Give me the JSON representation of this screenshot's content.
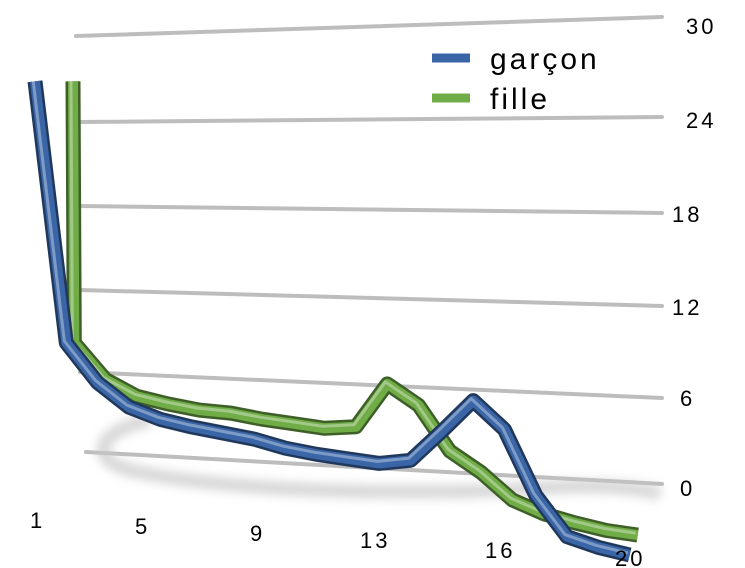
{
  "chart_data": {
    "type": "line",
    "x": [
      "1",
      "2",
      "3",
      "4",
      "5",
      "6",
      "7",
      "8",
      "9",
      "10",
      "11",
      "12",
      "13",
      "14",
      "15",
      "16",
      "17",
      "18",
      "19",
      "20"
    ],
    "x_tick_labels": [
      "1",
      "5",
      "9",
      "13",
      "16",
      "20"
    ],
    "y_tick_labels": [
      "0",
      "6",
      "12",
      "18",
      "24",
      "30"
    ],
    "ylim": [
      0,
      30
    ],
    "grid": true,
    "legend": "top-right",
    "series": [
      {
        "name": "garçon",
        "color": "#3a66a8",
        "values": [
          27.5,
          10.5,
          8,
          6.5,
          5.8,
          5.4,
          5.1,
          4.8,
          4.3,
          4,
          3.8,
          3.6,
          3.9,
          5.9,
          8,
          6.2,
          2,
          -0.6,
          -1.2,
          -1.6
        ]
      },
      {
        "name": "fille",
        "color": "#70ad47",
        "values": [
          27.5,
          10.5,
          8.2,
          7.2,
          6.8,
          6.5,
          6.4,
          6.1,
          5.9,
          5.7,
          5.9,
          8.8,
          7.5,
          4.6,
          3.3,
          1.6,
          0.8,
          0.3,
          -0.1,
          -0.3
        ]
      }
    ]
  }
}
